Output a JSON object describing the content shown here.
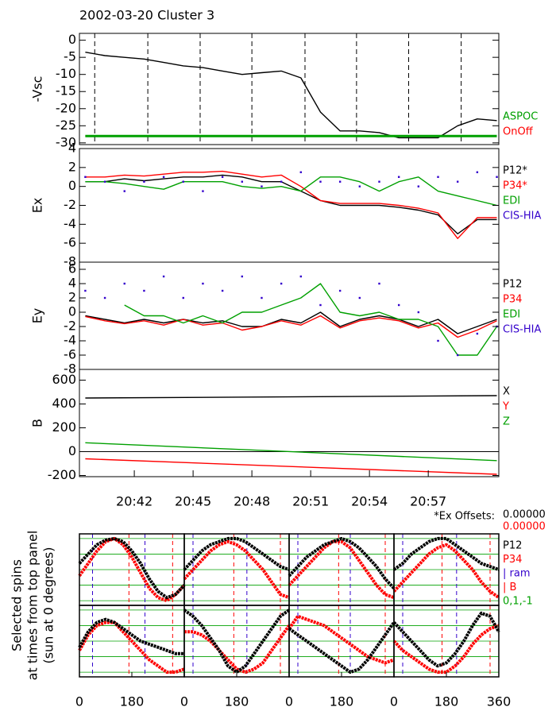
{
  "title": "2002-03-20 Cluster 3",
  "chart_data": [
    {
      "type": "line",
      "ylabel": "-Vsc",
      "xlim": [
        39.2,
        60.6
      ],
      "ylim": [
        -30.5,
        2
      ],
      "yticks": [
        0,
        -5,
        -10,
        -15,
        -20,
        -25,
        -30
      ],
      "legend": "lower right",
      "markers": [
        39.98,
        42.69,
        45.36,
        48.0,
        50.71,
        53.34,
        56.0,
        58.68
      ],
      "x": [
        39.5,
        40.5,
        41.5,
        42.5,
        43.5,
        44.5,
        45.5,
        46.5,
        47.5,
        48.5,
        49.5,
        50.5,
        51.5,
        52.5,
        53.5,
        54.5,
        55.5,
        56.5,
        57.5,
        58.5,
        59.5,
        60.5
      ],
      "series": [
        {
          "name": "Vsc",
          "color": "#000000",
          "values": [
            -3.5,
            -4.5,
            -5,
            -5.5,
            -6.5,
            -7.5,
            -8,
            -9,
            -10,
            -9.5,
            -9,
            -11,
            -21,
            -26.5,
            -26.5,
            -27,
            -28.5,
            -28.5,
            -28.5,
            -25,
            -23,
            -23.5
          ]
        },
        {
          "name": "OnOff",
          "color": "#ff0000",
          "values": [
            -28,
            -28,
            -28,
            -28,
            -28,
            -28,
            -28,
            -28,
            -28,
            -28,
            -28,
            -28,
            -28,
            -28,
            -28,
            -28,
            -28,
            -28,
            -28,
            -28,
            -28,
            -28
          ]
        },
        {
          "name": "ASPOC",
          "color": "#00a000",
          "width": 3,
          "values": [
            -28,
            -28,
            -28,
            -28,
            -28,
            -28,
            -28,
            -28,
            -28,
            -28,
            -28,
            -28,
            -28,
            -28,
            -28,
            -28,
            -28,
            -28,
            -28,
            -28,
            -28,
            -28
          ]
        }
      ],
      "legend_order": [
        2,
        1
      ]
    },
    {
      "type": "line",
      "ylabel": "Ex",
      "xlim": [
        39.2,
        60.6
      ],
      "ylim": [
        -8,
        4
      ],
      "yticks": [
        4,
        2,
        0,
        -2,
        -4,
        -6,
        -8
      ],
      "legend": "upper right",
      "x": [
        39.5,
        40.5,
        41.5,
        42.5,
        43.5,
        44.5,
        45.5,
        46.5,
        47.5,
        48.5,
        49.5,
        50.5,
        51.5,
        52.5,
        53.5,
        54.5,
        55.5,
        56.5,
        57.5,
        58.5,
        59.5,
        60.5
      ],
      "series": [
        {
          "name": "P12*",
          "color": "#000000",
          "values": [
            0.5,
            0.5,
            0.8,
            0.6,
            0.8,
            1,
            1,
            1.2,
            1,
            0.5,
            0.5,
            -0.5,
            -1.5,
            -2,
            -2,
            -2,
            -2.2,
            -2.5,
            -3,
            -5,
            -3.5,
            -3.5
          ]
        },
        {
          "name": "P34*",
          "color": "#ff0000",
          "values": [
            1,
            1,
            1.2,
            1.1,
            1.3,
            1.5,
            1.5,
            1.6,
            1.3,
            1,
            1.2,
            0,
            -1.5,
            -1.8,
            -1.8,
            -1.8,
            -2,
            -2.3,
            -2.8,
            -5.5,
            -3.3,
            -3.3
          ]
        },
        {
          "name": "EDI",
          "color": "#00a000",
          "values": [
            0.5,
            0.5,
            0.3,
            0,
            -0.3,
            0.5,
            0.5,
            0.5,
            0,
            -0.2,
            0,
            -0.5,
            1,
            1,
            0.5,
            -0.5,
            0.5,
            1,
            -0.5,
            -1,
            -1.5,
            -2
          ]
        },
        {
          "name": "CIS-HIA",
          "color": "#3300cc",
          "style": "dots",
          "values": [
            1,
            0.5,
            -0.5,
            0.5,
            1,
            0.5,
            -0.5,
            1,
            0.5,
            0,
            0.5,
            1.5,
            0.5,
            0.5,
            0,
            0.5,
            1,
            0,
            1,
            0.5,
            1.5,
            1
          ]
        }
      ],
      "legend_order": [
        0,
        1,
        2,
        3
      ]
    },
    {
      "type": "line",
      "ylabel": "Ey",
      "xlim": [
        39.2,
        60.6
      ],
      "ylim": [
        -8,
        7
      ],
      "yticks": [
        6,
        4,
        2,
        0,
        -2,
        -4,
        -6,
        -8
      ],
      "legend": "upper right",
      "x": [
        39.5,
        40.5,
        41.5,
        42.5,
        43.5,
        44.5,
        45.5,
        46.5,
        47.5,
        48.5,
        49.5,
        50.5,
        51.5,
        52.5,
        53.5,
        54.5,
        55.5,
        56.5,
        57.5,
        58.5,
        59.5,
        60.5
      ],
      "series": [
        {
          "name": "P12",
          "color": "#000000",
          "values": [
            -0.5,
            -1,
            -1.5,
            -1,
            -1.5,
            -1,
            -1.5,
            -1.2,
            -2,
            -2,
            -1,
            -1.5,
            0,
            -2,
            -1,
            -0.5,
            -1,
            -2,
            -1,
            -3,
            -2,
            -1
          ]
        },
        {
          "name": "P34",
          "color": "#ff0000",
          "values": [
            -0.6,
            -1.2,
            -1.6,
            -1.2,
            -1.8,
            -1,
            -1.8,
            -1.5,
            -2.5,
            -2,
            -1.2,
            -1.8,
            -0.5,
            -2.2,
            -1.2,
            -0.8,
            -1.2,
            -2.2,
            -1.5,
            -3.5,
            -2.5,
            -1.2
          ]
        },
        {
          "name": "EDI",
          "color": "#00a000",
          "values": [
            null,
            null,
            1,
            -0.5,
            -0.5,
            -1.5,
            -0.5,
            -1.5,
            0,
            0,
            1,
            2,
            4,
            0,
            -0.5,
            0,
            -1,
            -1,
            -2,
            -6,
            -6,
            -2
          ]
        },
        {
          "name": "CIS-HIA",
          "color": "#3300cc",
          "style": "dots",
          "values": [
            3,
            2,
            4,
            3,
            5,
            2,
            4,
            3,
            5,
            2,
            4,
            5,
            1,
            3,
            2,
            4,
            1,
            0,
            -4,
            -6,
            -3,
            -2
          ]
        }
      ],
      "legend_order": [
        0,
        1,
        2,
        3
      ]
    },
    {
      "type": "line",
      "ylabel": "B",
      "xlim": [
        39.2,
        60.6
      ],
      "ylim": [
        -210,
        690
      ],
      "yticks": [
        600,
        400,
        200,
        0,
        -200
      ],
      "legend": "upper right",
      "hlines": [
        0
      ],
      "xticks": [
        {
          "value": 42,
          "label": "20:42"
        },
        {
          "value": 45,
          "label": "20:45"
        },
        {
          "value": 48,
          "label": "20:48"
        },
        {
          "value": 51,
          "label": "20:51"
        },
        {
          "value": 54,
          "label": "20:54"
        },
        {
          "value": 57,
          "label": "20:57"
        }
      ],
      "x": [
        39.5,
        60.5
      ],
      "series": [
        {
          "name": "X",
          "color": "#000000",
          "values": [
            450,
            470
          ]
        },
        {
          "name": "Y",
          "color": "#ff0000",
          "values": [
            -60,
            -190
          ]
        },
        {
          "name": "Z",
          "color": "#00a000",
          "values": [
            75,
            -75
          ]
        }
      ],
      "legend_order": [
        0,
        1,
        2
      ]
    },
    {
      "type": "spin",
      "ylabel": [
        "Selected spins",
        "at times from top panel",
        "(sun at 0 degrees)"
      ],
      "offset_title": "*Ex Offsets:",
      "offsets": [
        0,
        0
      ],
      "offset_labels": [
        "0.00000",
        "0.00000"
      ],
      "offset_colors": [
        "#000000",
        "#ff0000"
      ],
      "xlim": [
        0,
        360
      ],
      "ylim": [
        -1.15,
        1.15
      ],
      "xticks": [
        0,
        180,
        360
      ],
      "guides": [
        -1,
        -0.5,
        0,
        0.5,
        1
      ],
      "legend": [
        {
          "name": "P12",
          "color": "#000000"
        },
        {
          "name": "P34",
          "color": "#ff0000"
        },
        {
          "name": "| ram",
          "color": "#3300cc"
        },
        {
          "name": "| B",
          "color": "#ff0000"
        },
        {
          "name": "0,1,-1",
          "color": "#00a000"
        }
      ],
      "angles": [
        0,
        30,
        60,
        90,
        120,
        150,
        180,
        210,
        240,
        270,
        300,
        330,
        360
      ],
      "cells": [
        {
          "p12": [
            0.2,
            0.5,
            0.8,
            0.95,
            1,
            0.9,
            0.6,
            0.2,
            -0.3,
            -0.7,
            -0.9,
            -0.8,
            -0.5
          ],
          "p34": [
            -0.2,
            0.2,
            0.6,
            0.9,
            1,
            0.8,
            0.4,
            -0.1,
            -0.6,
            -0.9,
            -1,
            -0.8,
            -0.5
          ],
          "ram": [
            45,
            225
          ],
          "b": [
            170,
            320
          ]
        },
        {
          "p12": [
            0,
            0.3,
            0.6,
            0.8,
            0.9,
            1,
            1,
            0.9,
            0.7,
            0.5,
            0.3,
            0.1,
            0
          ],
          "p34": [
            -0.3,
            0,
            0.3,
            0.6,
            0.8,
            0.9,
            0.8,
            0.6,
            0.3,
            0,
            -0.4,
            -0.8,
            -0.9
          ],
          "ram": [
            30,
            215
          ],
          "b": [
            170,
            330
          ]
        },
        {
          "p12": [
            -0.2,
            0.1,
            0.4,
            0.6,
            0.8,
            0.9,
            1,
            0.9,
            0.7,
            0.4,
            0.1,
            -0.3,
            -0.6
          ],
          "p34": [
            -0.5,
            -0.2,
            0.1,
            0.4,
            0.7,
            0.9,
            0.9,
            0.7,
            0.3,
            -0.1,
            -0.5,
            -0.8,
            -0.9
          ],
          "ram": [
            30,
            210
          ],
          "b": [
            170,
            330
          ]
        },
        {
          "p12": [
            0,
            0.2,
            0.5,
            0.7,
            0.9,
            1,
            1,
            0.8,
            0.6,
            0.4,
            0.2,
            0.1,
            0
          ],
          "p34": [
            -0.7,
            -0.4,
            -0.1,
            0.2,
            0.5,
            0.7,
            0.8,
            0.6,
            0.3,
            0,
            -0.4,
            -0.7,
            -0.9
          ],
          "ram": [
            30,
            215
          ],
          "b": [
            165,
            330
          ]
        },
        {
          "p12": [
            -0.2,
            0.3,
            0.6,
            0.7,
            0.6,
            0.4,
            0.2,
            0,
            -0.1,
            -0.2,
            -0.3,
            -0.4,
            -0.4
          ],
          "p34": [
            -0.3,
            0.2,
            0.5,
            0.6,
            0.6,
            0.3,
            0,
            -0.3,
            -0.6,
            -0.8,
            -1,
            -1,
            -0.9
          ],
          "ram": [
            45,
            225
          ],
          "b": [
            170,
            320
          ]
        },
        {
          "p12": [
            1,
            0.8,
            0.5,
            0.1,
            -0.3,
            -0.8,
            -1,
            -0.8,
            -0.4,
            0,
            0.4,
            0.8,
            1
          ],
          "p34": [
            0.3,
            0.3,
            0.2,
            0,
            -0.3,
            -0.6,
            -0.9,
            -1,
            -0.9,
            -0.7,
            -0.3,
            0.1,
            0.5
          ],
          "ram": [
            30,
            215
          ],
          "b": [
            170,
            330
          ]
        },
        {
          "p12": [
            0.4,
            0.2,
            0,
            -0.2,
            -0.4,
            -0.6,
            -0.8,
            -1,
            -0.9,
            -0.6,
            -0.2,
            0.2,
            0.6
          ],
          "p34": [
            0.4,
            0.8,
            0.7,
            0.6,
            0.5,
            0.3,
            0.1,
            -0.1,
            -0.3,
            -0.5,
            -0.6,
            -0.7,
            -0.6
          ],
          "ram": [
            30,
            210
          ],
          "b": [
            170,
            330
          ]
        },
        {
          "p12": [
            0.6,
            0.3,
            0,
            -0.3,
            -0.6,
            -0.8,
            -0.7,
            -0.4,
            0,
            0.5,
            0.9,
            0.8,
            0.3
          ],
          "p34": [
            0,
            -0.3,
            -0.5,
            -0.7,
            -0.9,
            -1,
            -1,
            -0.8,
            -0.5,
            -0.1,
            0.2,
            0.4,
            0.5
          ],
          "ram": [
            30,
            215
          ],
          "b": [
            165,
            330
          ]
        }
      ]
    }
  ]
}
